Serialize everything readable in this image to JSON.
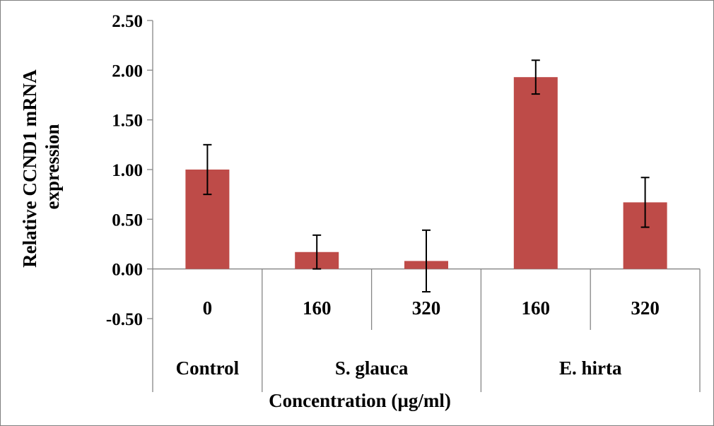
{
  "chart_data": {
    "type": "bar",
    "title": "",
    "ylabel_line1": "Relative  CCND1  mRNA",
    "ylabel_line2": "expression",
    "xlabel": "Concentration   (µg/ml)",
    "ylim": [
      -0.5,
      2.5
    ],
    "ytick_step": 0.5,
    "y_ticks": [
      "-0.50",
      "0.00",
      "0.50",
      "1.00",
      "1.50",
      "2.00",
      "2.50"
    ],
    "categories": [
      "0",
      "160",
      "320",
      "160",
      "320"
    ],
    "groups": [
      {
        "label": "Control",
        "count": 1
      },
      {
        "label": "S. glauca",
        "count": 2
      },
      {
        "label": "E. hirta",
        "count": 2
      }
    ],
    "values": [
      1.0,
      0.17,
      0.08,
      1.93,
      0.67
    ],
    "errors": [
      0.25,
      0.17,
      0.31,
      0.17,
      0.25
    ],
    "bar_color": "#BE4B48",
    "grid": false,
    "legend": "none"
  }
}
